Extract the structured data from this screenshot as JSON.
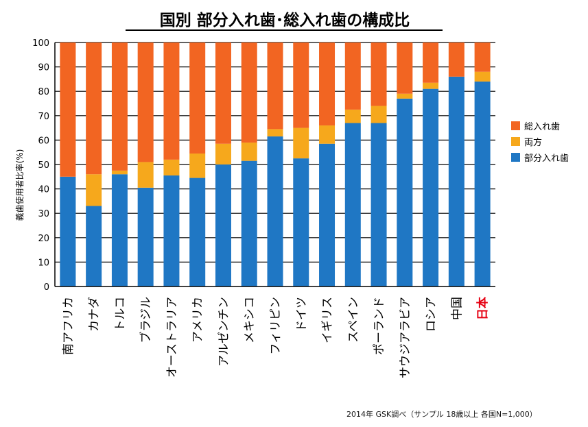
{
  "chart_data": {
    "type": "bar",
    "stacked": true,
    "title": "国別 部分入れ歯･総入れ歯の構成比",
    "ylabel": "義歯使用者比率(%)",
    "xlabel": "",
    "ylim": [
      0,
      100
    ],
    "yticks": [
      0,
      10,
      20,
      30,
      40,
      50,
      60,
      70,
      80,
      90,
      100
    ],
    "legend_position": "right",
    "categories": [
      "南アフリカ",
      "カナダ",
      "トルコ",
      "ブラジル",
      "オーストラリア",
      "アメリカ",
      "アルゼンチン",
      "メキシコ",
      "フィリピン",
      "ドイツ",
      "イギリス",
      "スペイン",
      "ポーランド",
      "サウジアラビア",
      "ロシア",
      "中国",
      "日本"
    ],
    "highlight_category": "日本",
    "highlight_color": "#e60012",
    "series": [
      {
        "name": "部分入れ歯",
        "color": "#1f77c4",
        "values": [
          45,
          33,
          46,
          40.5,
          45.5,
          44.5,
          50,
          51.5,
          61.5,
          52.5,
          58.5,
          67,
          67,
          77,
          81,
          86,
          84
        ]
      },
      {
        "name": "両方",
        "color": "#f6a81c",
        "values": [
          0,
          13,
          1.5,
          10.5,
          6.5,
          10,
          8.5,
          7.5,
          3,
          12.5,
          7.5,
          5.5,
          7,
          2,
          2.5,
          0,
          4
        ]
      },
      {
        "name": "総入れ歯",
        "color": "#f26522",
        "values": [
          55,
          54,
          52.5,
          49,
          48,
          45.5,
          41.5,
          41,
          35.5,
          35,
          34,
          27.5,
          26,
          21,
          16.5,
          14,
          12
        ]
      }
    ],
    "legend_order": [
      "総入れ歯",
      "両方",
      "部分入れ歯"
    ]
  },
  "source_note": "2014年 GSK調べ（サンプル 18歳以上 各国N=1,000）"
}
